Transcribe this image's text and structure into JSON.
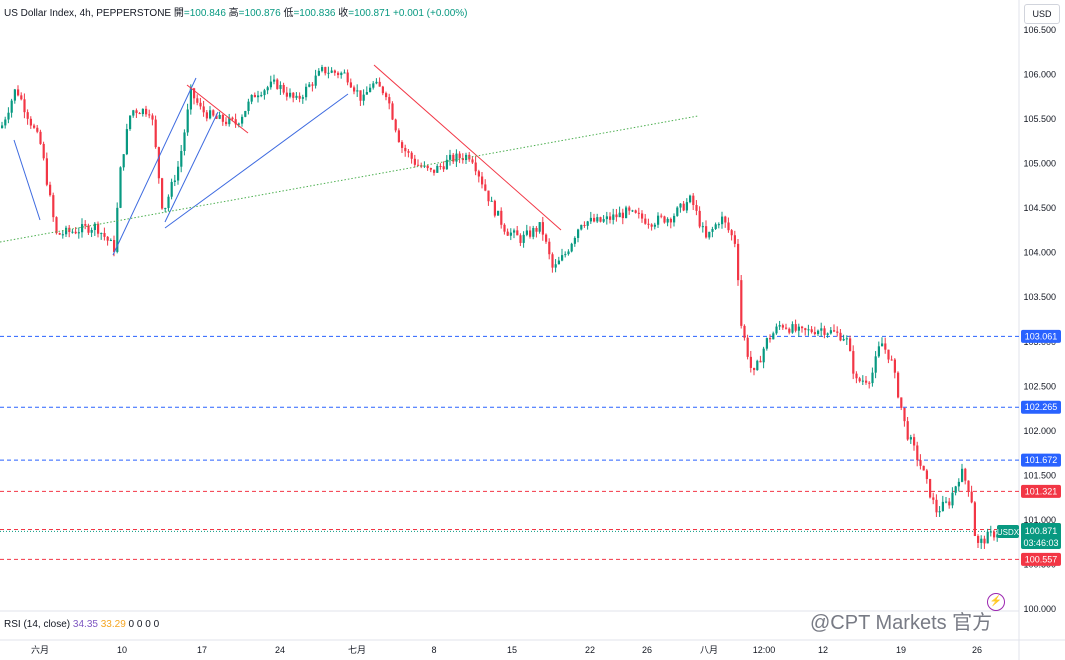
{
  "header": {
    "symbol": "US Dollar Index, 4h, PEPPERSTONE",
    "open_label": "開",
    "open_value": "=100.846",
    "high_label": "高",
    "high_value": "=100.876",
    "low_label": "低",
    "low_value": "=100.836",
    "close_label": "收",
    "close_value": "=100.871",
    "change": "+0.001 (+0.00%)"
  },
  "currency_button": "USD",
  "price_axis": {
    "ticks": [
      "106.500",
      "106.000",
      "105.500",
      "105.000",
      "104.500",
      "104.000",
      "103.500",
      "103.000",
      "102.500",
      "102.000",
      "101.500",
      "101.000",
      "100.500",
      "100.000"
    ]
  },
  "time_axis": {
    "ticks": [
      "六月",
      "10",
      "17",
      "24",
      "七月",
      "8",
      "15",
      "22",
      "26",
      "八月",
      "12:00",
      "12",
      "19",
      "26"
    ]
  },
  "levels": [
    {
      "label": "103.061",
      "color": "#2962ff"
    },
    {
      "label": "102.265",
      "color": "#2962ff"
    },
    {
      "label": "101.672",
      "color": "#2962ff"
    },
    {
      "label": "101.321",
      "color": "#f23645"
    },
    {
      "label": "100.892",
      "color": "#f23645"
    },
    {
      "label": "100.557",
      "color": "#f23645"
    }
  ],
  "current_price": {
    "symbol": "USDX",
    "price": "100.871",
    "countdown": "03:46:03",
    "color": "#089981"
  },
  "rsi": {
    "label": "RSI (14, close)",
    "value1": "34.35",
    "value2": "33.29",
    "zeros": "0 0 0 0"
  },
  "colors": {
    "up": "#089981",
    "down": "#f23645",
    "trend_blue": "#3d6ae0",
    "trend_red": "#f23645",
    "dotted_green": "#4caf50"
  },
  "watermark": "@CPT Markets 官方"
}
